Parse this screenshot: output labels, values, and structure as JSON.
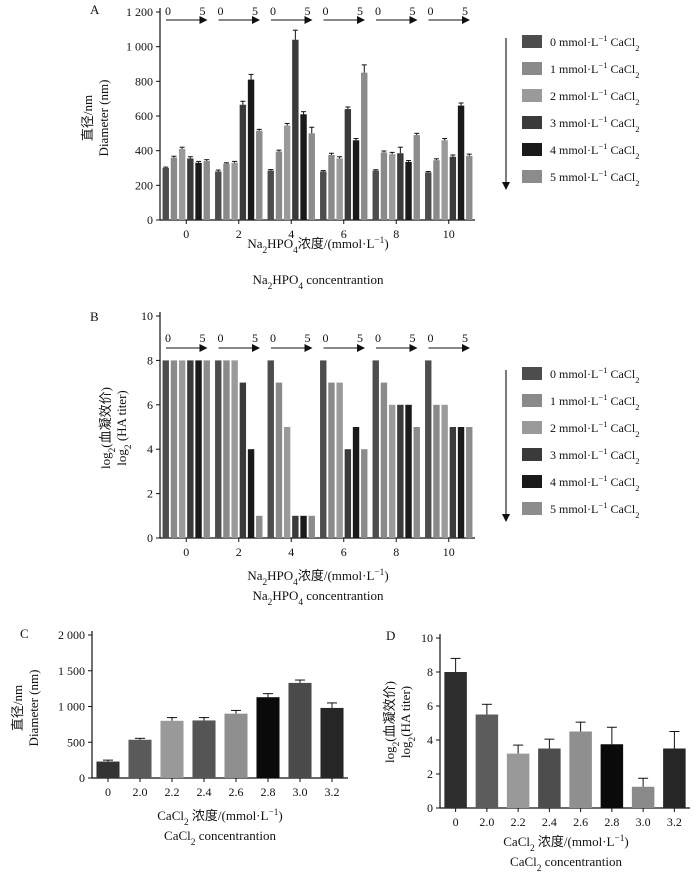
{
  "colors": {
    "series": [
      "#4d4d4d",
      "#8a8a8a",
      "#9a9a9a",
      "#3a3a3a",
      "#1a1a1a",
      "#8c8c8c"
    ],
    "c_bars": [
      "#333333",
      "#5a5a5a",
      "#999999",
      "#555555",
      "#8f8f8f",
      "#0a0a0a",
      "#4a4a4a",
      "#262626"
    ],
    "d_bars": [
      "#2e2e2e",
      "#5c5c5c",
      "#999999",
      "#4d4d4d",
      "#8f8f8f",
      "#0a0a0a",
      "#8a8a8a",
      "#262626"
    ],
    "error": "#111111",
    "axis": "#111111"
  },
  "legend": {
    "entries": [
      {
        "prefix": "0 mmol·L",
        "sup": "−1",
        "name": "CaCl",
        "sub": "2"
      },
      {
        "prefix": "1 mmol·L",
        "sup": "−1",
        "name": "CaCl",
        "sub": "2"
      },
      {
        "prefix": "2 mmol·L",
        "sup": "−1",
        "name": "CaCl",
        "sub": "2"
      },
      {
        "prefix": "3 mmol·L",
        "sup": "−1",
        "name": "CaCl",
        "sub": "2"
      },
      {
        "prefix": "4 mmol·L",
        "sup": "−1",
        "name": "CaCl",
        "sub": "2"
      },
      {
        "prefix": "5 mmol·L",
        "sup": "−1",
        "name": "CaCl",
        "sub": "2"
      }
    ]
  },
  "chart_data": [
    {
      "id": "A",
      "panel_label": "A",
      "type": "bar",
      "categories": [
        "0",
        "2",
        "4",
        "6",
        "8",
        "10"
      ],
      "yticks": [
        0,
        200,
        400,
        600,
        800,
        1000,
        1200
      ],
      "ytick_labels": [
        "0",
        "200",
        "400",
        "600",
        "800",
        "1 000",
        "1 200"
      ],
      "ylim": [
        0,
        1200
      ],
      "ylabel_line1": "直径/nm",
      "ylabel_line2": "Diameter (nm)",
      "xlabel_line1": {
        "a": "Na",
        "b": "2",
        "c": "HPO",
        "d": "4",
        "e": "浓度/(mmol·L",
        "f": "−1",
        "g": ")"
      },
      "xlabel_line2": {
        "a": "Na",
        "b": "2",
        "c": "HPO",
        "d": "4",
        "e": " concentrantion"
      },
      "arrow_start": "0",
      "arrow_end": "5",
      "series": [
        {
          "name": "0 mmol·L−1 CaCl2",
          "values": [
            300,
            280,
            285,
            280,
            285,
            275
          ],
          "errors": [
            5,
            8,
            6,
            5,
            5,
            5
          ]
        },
        {
          "name": "1 mmol·L−1 CaCl2",
          "values": [
            360,
            325,
            395,
            375,
            390,
            345
          ],
          "errors": [
            8,
            5,
            8,
            10,
            8,
            8
          ]
        },
        {
          "name": "2 mmol·L−1 CaCl2",
          "values": [
            410,
            330,
            545,
            355,
            380,
            460
          ],
          "errors": [
            10,
            8,
            12,
            10,
            10,
            10
          ]
        },
        {
          "name": "3 mmol·L−1 CaCl2",
          "values": [
            355,
            665,
            1040,
            640,
            385,
            365
          ],
          "errors": [
            10,
            20,
            55,
            12,
            35,
            10
          ]
        },
        {
          "name": "4 mmol·L−1 CaCl2",
          "values": [
            330,
            810,
            610,
            460,
            335,
            660
          ],
          "errors": [
            8,
            30,
            15,
            10,
            8,
            15
          ]
        },
        {
          "name": "5 mmol·L−1 CaCl2",
          "values": [
            340,
            515,
            500,
            850,
            490,
            370
          ],
          "errors": [
            8,
            8,
            35,
            45,
            10,
            10
          ]
        }
      ]
    },
    {
      "id": "B",
      "panel_label": "B",
      "type": "bar",
      "categories": [
        "0",
        "2",
        "4",
        "6",
        "8",
        "10"
      ],
      "yticks": [
        0,
        2,
        4,
        6,
        8,
        10
      ],
      "ytick_labels": [
        "0",
        "2",
        "4",
        "6",
        "8",
        "10"
      ],
      "ylim": [
        0,
        10
      ],
      "ylabel_line1": "log(血凝效价)",
      "ylabel_line2": "log (HA titer)",
      "ylabel_parts1": {
        "a": "log",
        "b": "2",
        "c": "(血凝效价)"
      },
      "ylabel_parts2": {
        "a": "log",
        "b": "2",
        "c": " (HA titer)"
      },
      "xlabel_line1": {
        "a": "Na",
        "b": "2",
        "c": "HPO",
        "d": "4",
        "e": "浓度/(mmol·L",
        "f": "−1",
        "g": ")"
      },
      "xlabel_line2": {
        "a": "Na",
        "b": "2",
        "c": "HPO",
        "d": "4",
        "e": " concentrantion"
      },
      "arrow_start": "0",
      "arrow_end": "5",
      "series": [
        {
          "name": "0 mmol·L−1 CaCl2",
          "values": [
            8,
            8,
            8,
            8,
            8,
            8
          ]
        },
        {
          "name": "1 mmol·L−1 CaCl2",
          "values": [
            8,
            8,
            7,
            7,
            7,
            6
          ]
        },
        {
          "name": "2 mmol·L−1 CaCl2",
          "values": [
            8,
            8,
            5,
            7,
            6,
            6
          ]
        },
        {
          "name": "3 mmol·L−1 CaCl2",
          "values": [
            8,
            7,
            1,
            4,
            6,
            5
          ]
        },
        {
          "name": "4 mmol·L−1 CaCl2",
          "values": [
            8,
            4,
            1,
            5,
            6,
            5
          ]
        },
        {
          "name": "5 mmol·L−1 CaCl2",
          "values": [
            8,
            1,
            1,
            4,
            5,
            5
          ]
        }
      ]
    },
    {
      "id": "C",
      "panel_label": "C",
      "type": "bar",
      "categories": [
        "0",
        "2.0",
        "2.2",
        "2.4",
        "2.6",
        "2.8",
        "3.0",
        "3.2"
      ],
      "values": [
        230,
        535,
        800,
        805,
        900,
        1130,
        1330,
        980
      ],
      "errors": [
        20,
        20,
        45,
        40,
        45,
        50,
        40,
        70
      ],
      "yticks": [
        0,
        500,
        1000,
        1500,
        2000
      ],
      "ytick_labels": [
        "0",
        "500",
        "1 000",
        "1 500",
        "2 000"
      ],
      "ylim": [
        0,
        2000
      ],
      "ylabel_line1": "直径/nm",
      "ylabel_line2": "Diameter (nm)",
      "xlabel_line1": {
        "a": "CaCl",
        "b": "2",
        "c": " 浓度/(mmol·L",
        "d": "−1",
        "e": ")"
      },
      "xlabel_line2": {
        "a": "CaCl",
        "b": "2",
        "c": " concentrantion"
      }
    },
    {
      "id": "D",
      "panel_label": "D",
      "type": "bar",
      "categories": [
        "0",
        "2.0",
        "2.2",
        "2.4",
        "2.6",
        "2.8",
        "3.0",
        "3.2"
      ],
      "values": [
        8.0,
        5.5,
        3.2,
        3.5,
        4.5,
        3.75,
        1.25,
        3.5
      ],
      "errors": [
        0.8,
        0.6,
        0.5,
        0.55,
        0.55,
        1.0,
        0.5,
        1.0
      ],
      "yticks": [
        0,
        2,
        4,
        6,
        8,
        10
      ],
      "ytick_labels": [
        "0",
        "2",
        "4",
        "6",
        "8",
        "10"
      ],
      "ylim": [
        0,
        10
      ],
      "ylabel_parts1": {
        "a": "log",
        "b": "2",
        "c": "(血凝效价)"
      },
      "ylabel_parts2": {
        "a": "log",
        "b": "2",
        "c": "(HA titer)"
      },
      "xlabel_line1": {
        "a": "CaCl",
        "b": "2",
        "c": " 浓度/(mmol·L",
        "d": "−1",
        "e": ")"
      },
      "xlabel_line2": {
        "a": "CaCl",
        "b": "2",
        "c": " concentrantion"
      }
    }
  ]
}
